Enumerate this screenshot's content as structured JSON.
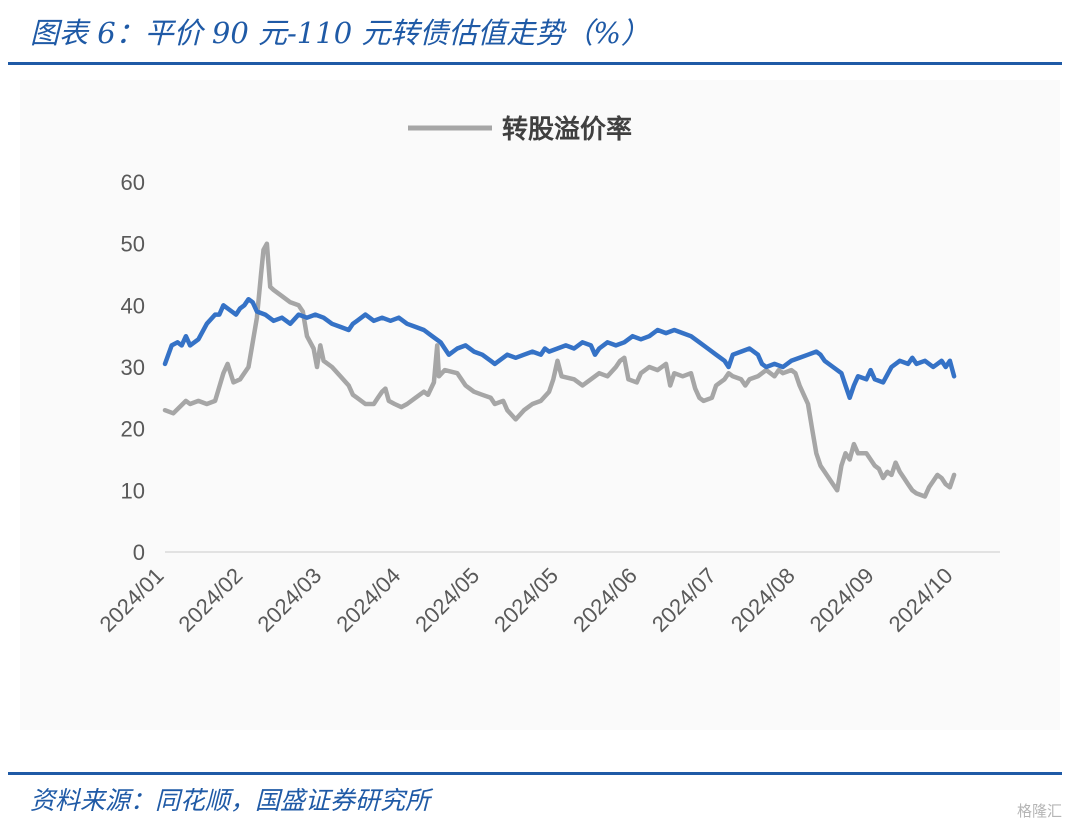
{
  "header": {
    "title": "图表 6：平价 90 元-110 元转债估值走势（%）"
  },
  "footer": {
    "source": "资料来源：同花顺，国盛证券研究所"
  },
  "watermark": {
    "text": "格隆汇"
  },
  "colors": {
    "accent": "#1f5aa6",
    "series_gray": "#a6a6a6",
    "series_blue": "#3572c6"
  },
  "chart_data": {
    "type": "line",
    "title": "",
    "xlabel": "",
    "ylabel": "",
    "ylim": [
      0,
      60
    ],
    "yticks": [
      0,
      10,
      20,
      30,
      40,
      50,
      60
    ],
    "xlim": [
      0,
      100
    ],
    "xticks": [
      {
        "x": 0,
        "label": "2024/01"
      },
      {
        "x": 9.45,
        "label": "2024/02"
      },
      {
        "x": 18.9,
        "label": "2024/03"
      },
      {
        "x": 28.35,
        "label": "2024/04"
      },
      {
        "x": 37.8,
        "label": "2024/05"
      },
      {
        "x": 47.25,
        "label": "2024/05"
      },
      {
        "x": 56.7,
        "label": "2024/06"
      },
      {
        "x": 66.15,
        "label": "2024/07"
      },
      {
        "x": 75.6,
        "label": "2024/08"
      },
      {
        "x": 85.05,
        "label": "2024/09"
      },
      {
        "x": 94.5,
        "label": "2024/10"
      }
    ],
    "grid": false,
    "legend": {
      "position": "top-center"
    },
    "series": [
      {
        "name": "转股溢价率",
        "color": "#a6a6a6",
        "points": [
          [
            0,
            23
          ],
          [
            1,
            22.5
          ],
          [
            2.5,
            24.5
          ],
          [
            3,
            24
          ],
          [
            4,
            24.5
          ],
          [
            5,
            24
          ],
          [
            6,
            24.5
          ],
          [
            7,
            29
          ],
          [
            7.5,
            30.5
          ],
          [
            8.2,
            27.5
          ],
          [
            9,
            28
          ],
          [
            10,
            30
          ],
          [
            11,
            38
          ],
          [
            11.5,
            45
          ],
          [
            11.8,
            49
          ],
          [
            12.2,
            50
          ],
          [
            12.6,
            43
          ],
          [
            13,
            42.5
          ],
          [
            14,
            41.5
          ],
          [
            15,
            40.5
          ],
          [
            16,
            40
          ],
          [
            16.5,
            39
          ],
          [
            17,
            35
          ],
          [
            17.8,
            33
          ],
          [
            18.2,
            30
          ],
          [
            18.6,
            33.5
          ],
          [
            19,
            31
          ],
          [
            20,
            30
          ],
          [
            21,
            28.5
          ],
          [
            22,
            27
          ],
          [
            22.5,
            25.5
          ],
          [
            23,
            25
          ],
          [
            24,
            24
          ],
          [
            25,
            24
          ],
          [
            25.5,
            25
          ],
          [
            26,
            26
          ],
          [
            26.4,
            26.5
          ],
          [
            26.8,
            24.5
          ],
          [
            27.5,
            24
          ],
          [
            28.3,
            23.5
          ],
          [
            29,
            24
          ],
          [
            30,
            25
          ],
          [
            31,
            26
          ],
          [
            31.5,
            25.5
          ],
          [
            32.2,
            27.5
          ],
          [
            32.6,
            33.5
          ],
          [
            32.8,
            28.5
          ],
          [
            33.5,
            29.5
          ],
          [
            35,
            29
          ],
          [
            35.5,
            28
          ],
          [
            36,
            27
          ],
          [
            37,
            26
          ],
          [
            38,
            25.5
          ],
          [
            39,
            25
          ],
          [
            39.5,
            24
          ],
          [
            40.5,
            24.5
          ],
          [
            41,
            23
          ],
          [
            42,
            21.5
          ],
          [
            43,
            23
          ],
          [
            44,
            24
          ],
          [
            45,
            24.5
          ],
          [
            46,
            26
          ],
          [
            46.5,
            28
          ],
          [
            47,
            31
          ],
          [
            47.5,
            28.5
          ],
          [
            49,
            28
          ],
          [
            50,
            27
          ],
          [
            51,
            28
          ],
          [
            52,
            29
          ],
          [
            53,
            28.5
          ],
          [
            54,
            30
          ],
          [
            54.5,
            31
          ],
          [
            55,
            31.5
          ],
          [
            55.5,
            28
          ],
          [
            56.5,
            27.5
          ],
          [
            57,
            29
          ],
          [
            58,
            30
          ],
          [
            59,
            29.5
          ],
          [
            60,
            30.5
          ],
          [
            60.5,
            27
          ],
          [
            61,
            29
          ],
          [
            62,
            28.5
          ],
          [
            63,
            29
          ],
          [
            63.5,
            26.5
          ],
          [
            64,
            25
          ],
          [
            64.5,
            24.5
          ],
          [
            65.5,
            25
          ],
          [
            66,
            27
          ],
          [
            67,
            28
          ],
          [
            67.5,
            29
          ],
          [
            68,
            28.5
          ],
          [
            69,
            28
          ],
          [
            69.5,
            27
          ],
          [
            70,
            28
          ],
          [
            71,
            28.5
          ],
          [
            72,
            29.5
          ],
          [
            73,
            28.5
          ],
          [
            73.5,
            29.5
          ],
          [
            74,
            29
          ],
          [
            75,
            29.5
          ],
          [
            75.5,
            29
          ],
          [
            76,
            27
          ],
          [
            76.5,
            25.5
          ],
          [
            77,
            24
          ],
          [
            77.5,
            20
          ],
          [
            78,
            16
          ],
          [
            78.5,
            14
          ],
          [
            79,
            13
          ],
          [
            79.5,
            12
          ],
          [
            80,
            11
          ],
          [
            80.5,
            10
          ],
          [
            81,
            14
          ],
          [
            81.5,
            16
          ],
          [
            82,
            15
          ],
          [
            82.5,
            17.5
          ],
          [
            83,
            16
          ],
          [
            84,
            16
          ],
          [
            84.5,
            15
          ],
          [
            85,
            14
          ],
          [
            85.5,
            13.5
          ],
          [
            86,
            12
          ],
          [
            86.5,
            13
          ],
          [
            87,
            12.5
          ],
          [
            87.5,
            14.5
          ],
          [
            88,
            13
          ],
          [
            88.5,
            12
          ],
          [
            89,
            11
          ],
          [
            89.5,
            10
          ],
          [
            90,
            9.5
          ],
          [
            91,
            9
          ],
          [
            91.5,
            10.5
          ],
          [
            92,
            11.5
          ],
          [
            92.5,
            12.5
          ],
          [
            93,
            12
          ],
          [
            93.5,
            11
          ],
          [
            94,
            10.5
          ],
          [
            94.5,
            12.5
          ]
        ]
      },
      {
        "name": "",
        "color": "#3572c6",
        "points": [
          [
            0,
            30.5
          ],
          [
            0.8,
            33.5
          ],
          [
            1.5,
            34
          ],
          [
            2,
            33.5
          ],
          [
            2.5,
            35
          ],
          [
            3,
            33.5
          ],
          [
            4,
            34.5
          ],
          [
            5,
            37
          ],
          [
            6,
            38.5
          ],
          [
            6.5,
            38.5
          ],
          [
            7,
            40
          ],
          [
            8,
            39
          ],
          [
            8.5,
            38.5
          ],
          [
            9,
            39.5
          ],
          [
            9.5,
            40
          ],
          [
            10,
            41
          ],
          [
            10.5,
            40.5
          ],
          [
            11,
            39
          ],
          [
            12,
            38.5
          ],
          [
            13,
            37.5
          ],
          [
            14,
            38
          ],
          [
            15,
            37
          ],
          [
            16,
            38.5
          ],
          [
            17,
            38
          ],
          [
            18,
            38.5
          ],
          [
            19,
            38
          ],
          [
            20,
            37
          ],
          [
            21,
            36.5
          ],
          [
            22,
            36
          ],
          [
            22.5,
            37
          ],
          [
            23,
            37.5
          ],
          [
            24,
            38.5
          ],
          [
            25,
            37.5
          ],
          [
            26,
            38
          ],
          [
            27,
            37.5
          ],
          [
            28,
            38
          ],
          [
            29,
            37
          ],
          [
            30,
            36.5
          ],
          [
            31,
            36
          ],
          [
            32,
            35
          ],
          [
            33,
            34
          ],
          [
            33.5,
            33
          ],
          [
            34,
            32
          ],
          [
            35,
            33
          ],
          [
            36,
            33.5
          ],
          [
            37,
            32.5
          ],
          [
            38,
            32
          ],
          [
            39,
            31
          ],
          [
            39.5,
            30.5
          ],
          [
            40,
            31
          ],
          [
            41,
            32
          ],
          [
            42,
            31.5
          ],
          [
            43,
            32
          ],
          [
            44,
            32.5
          ],
          [
            45,
            32
          ],
          [
            45.5,
            33
          ],
          [
            46,
            32.5
          ],
          [
            47,
            33
          ],
          [
            48,
            33.5
          ],
          [
            49,
            33
          ],
          [
            50,
            34
          ],
          [
            51,
            33.5
          ],
          [
            51.5,
            32
          ],
          [
            52,
            33
          ],
          [
            53,
            34
          ],
          [
            54,
            33.5
          ],
          [
            55,
            34
          ],
          [
            56,
            35
          ],
          [
            57,
            34.5
          ],
          [
            58,
            35
          ],
          [
            59,
            36
          ],
          [
            60,
            35.5
          ],
          [
            61,
            36
          ],
          [
            62,
            35.5
          ],
          [
            63,
            35
          ],
          [
            64,
            34
          ],
          [
            65,
            33
          ],
          [
            66,
            32
          ],
          [
            67,
            31
          ],
          [
            67.5,
            30
          ],
          [
            68,
            32
          ],
          [
            69,
            32.5
          ],
          [
            70,
            33
          ],
          [
            71,
            32
          ],
          [
            71.5,
            30.5
          ],
          [
            72,
            30
          ],
          [
            73,
            30.5
          ],
          [
            74,
            30
          ],
          [
            75,
            31
          ],
          [
            76,
            31.5
          ],
          [
            77,
            32
          ],
          [
            78,
            32.5
          ],
          [
            78.5,
            32
          ],
          [
            79,
            31
          ],
          [
            80,
            30
          ],
          [
            81,
            29
          ],
          [
            81.5,
            27
          ],
          [
            82,
            25
          ],
          [
            82.5,
            27
          ],
          [
            83,
            28.5
          ],
          [
            84,
            28
          ],
          [
            84.5,
            29.5
          ],
          [
            85,
            28
          ],
          [
            86,
            27.5
          ],
          [
            87,
            30
          ],
          [
            88,
            31
          ],
          [
            89,
            30.5
          ],
          [
            89.5,
            31.5
          ],
          [
            90,
            30.5
          ],
          [
            91,
            31
          ],
          [
            92,
            30
          ],
          [
            92.5,
            30.5
          ],
          [
            93,
            31
          ],
          [
            93.5,
            30
          ],
          [
            94,
            31
          ],
          [
            94.5,
            28.5
          ]
        ]
      }
    ]
  }
}
